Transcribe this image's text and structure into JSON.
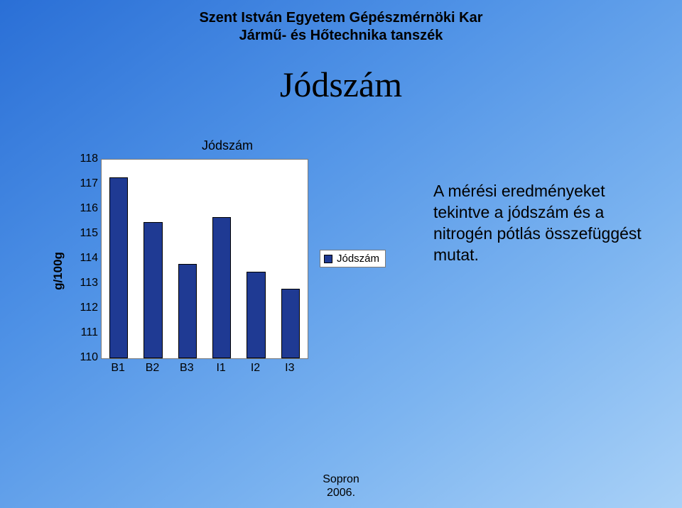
{
  "header": {
    "line1": "Szent István Egyetem Gépészmérnöki Kar",
    "line2": "Jármű- és Hőtechnika tanszék"
  },
  "main_title": "Jódszám",
  "chart": {
    "type": "bar",
    "title": "Jódszám",
    "ylabel": "g/100g",
    "ylim": [
      110,
      118
    ],
    "ytick_step": 1,
    "yticks": [
      118,
      117,
      116,
      115,
      114,
      113,
      112,
      111,
      110
    ],
    "categories": [
      "B1",
      "B2",
      "B3",
      "I1",
      "I2",
      "I3"
    ],
    "values": [
      117.3,
      115.5,
      113.8,
      115.7,
      113.5,
      112.8
    ],
    "bar_color": "#1f3a93",
    "bar_border_color": "#000000",
    "bar_width": 0.55,
    "plot_background": "#ffffff",
    "plot_border_color": "#7a7a7a",
    "label_fontsize": 16,
    "tick_fontsize": 16,
    "title_fontsize": 18,
    "legend": {
      "label": "Jódszám",
      "swatch_color": "#1f3a93",
      "position": "right-middle"
    }
  },
  "commentary": "A mérési eredményeket tekintve a jódszám és a nitrogén pótlás összefüggést mutat.",
  "footer": {
    "line1": "Sopron",
    "line2": "2006."
  },
  "colors": {
    "page_gradient_from": "#2a6fd6",
    "page_gradient_to": "#a9d1f7",
    "text": "#000000"
  }
}
